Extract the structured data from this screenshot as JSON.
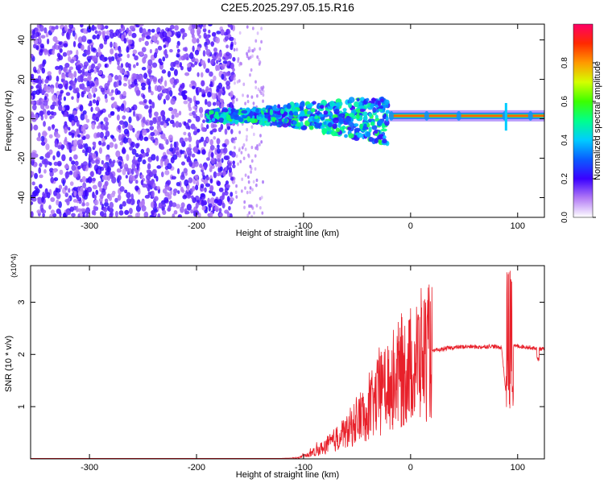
{
  "figure": {
    "title": "C2E5.2025.297.05.15.R16"
  },
  "chart_data": [
    {
      "type": "heatmap",
      "name": "spectrogram",
      "xlabel": "Height of straight line (km)",
      "ylabel": "Frequency (Hz)",
      "xlim": [
        -355,
        125
      ],
      "ylim": [
        -50,
        48
      ],
      "xticks": [
        -300,
        -200,
        -100,
        0,
        100
      ],
      "yticks": [
        -40,
        -20,
        0,
        20,
        40
      ],
      "colorbar": {
        "label": "Normalized spectral amplitude",
        "range": [
          0,
          1
        ],
        "ticks": [
          0.0,
          0.2,
          0.4,
          0.6,
          0.8
        ]
      },
      "features": [
        {
          "desc": "broadband noise",
          "x_range": [
            -355,
            -165
          ],
          "freq_range": [
            -50,
            48
          ],
          "amplitude": 0.1
        },
        {
          "desc": "sparse noise",
          "x_range": [
            -165,
            -140
          ],
          "freq_range": [
            -50,
            48
          ],
          "amplitude": 0.05
        },
        {
          "desc": "signal onset",
          "x_range": [
            -190,
            -20
          ],
          "freq_range": [
            -12,
            10
          ],
          "amplitude": 0.45
        },
        {
          "desc": "stable carrier",
          "x_range": [
            -20,
            125
          ],
          "freq_center": 1.5,
          "amplitude": 0.95
        }
      ]
    },
    {
      "type": "line",
      "name": "snr",
      "xlabel": "Height of straight line (km)",
      "ylabel": "SNR (10 * v/v)",
      "y_scale_label": "(x10^4)",
      "xlim": [
        -355,
        125
      ],
      "ylim": [
        0,
        3.7
      ],
      "xticks": [
        -300,
        -200,
        -100,
        0,
        100
      ],
      "yticks": [
        1,
        2,
        3
      ],
      "series": [
        {
          "name": "SNR",
          "color": "#e8202a",
          "x": [
            -355,
            -300,
            -250,
            -200,
            -150,
            -120,
            -105,
            -95,
            -85,
            -75,
            -65,
            -55,
            -45,
            -35,
            -25,
            -15,
            -5,
            5,
            15,
            25,
            35,
            45,
            55,
            65,
            75,
            85,
            90,
            92,
            94,
            100,
            110,
            115,
            125
          ],
          "y": [
            0.01,
            0.01,
            0.01,
            0.01,
            0.01,
            0.01,
            0.02,
            0.08,
            0.18,
            0.3,
            0.45,
            0.62,
            0.85,
            1.05,
            1.35,
            1.55,
            1.7,
            1.92,
            2.02,
            2.08,
            2.12,
            2.14,
            2.15,
            2.14,
            2.16,
            2.13,
            1.05,
            3.65,
            2.15,
            2.16,
            2.14,
            2.12,
            2.1
          ]
        }
      ]
    }
  ]
}
